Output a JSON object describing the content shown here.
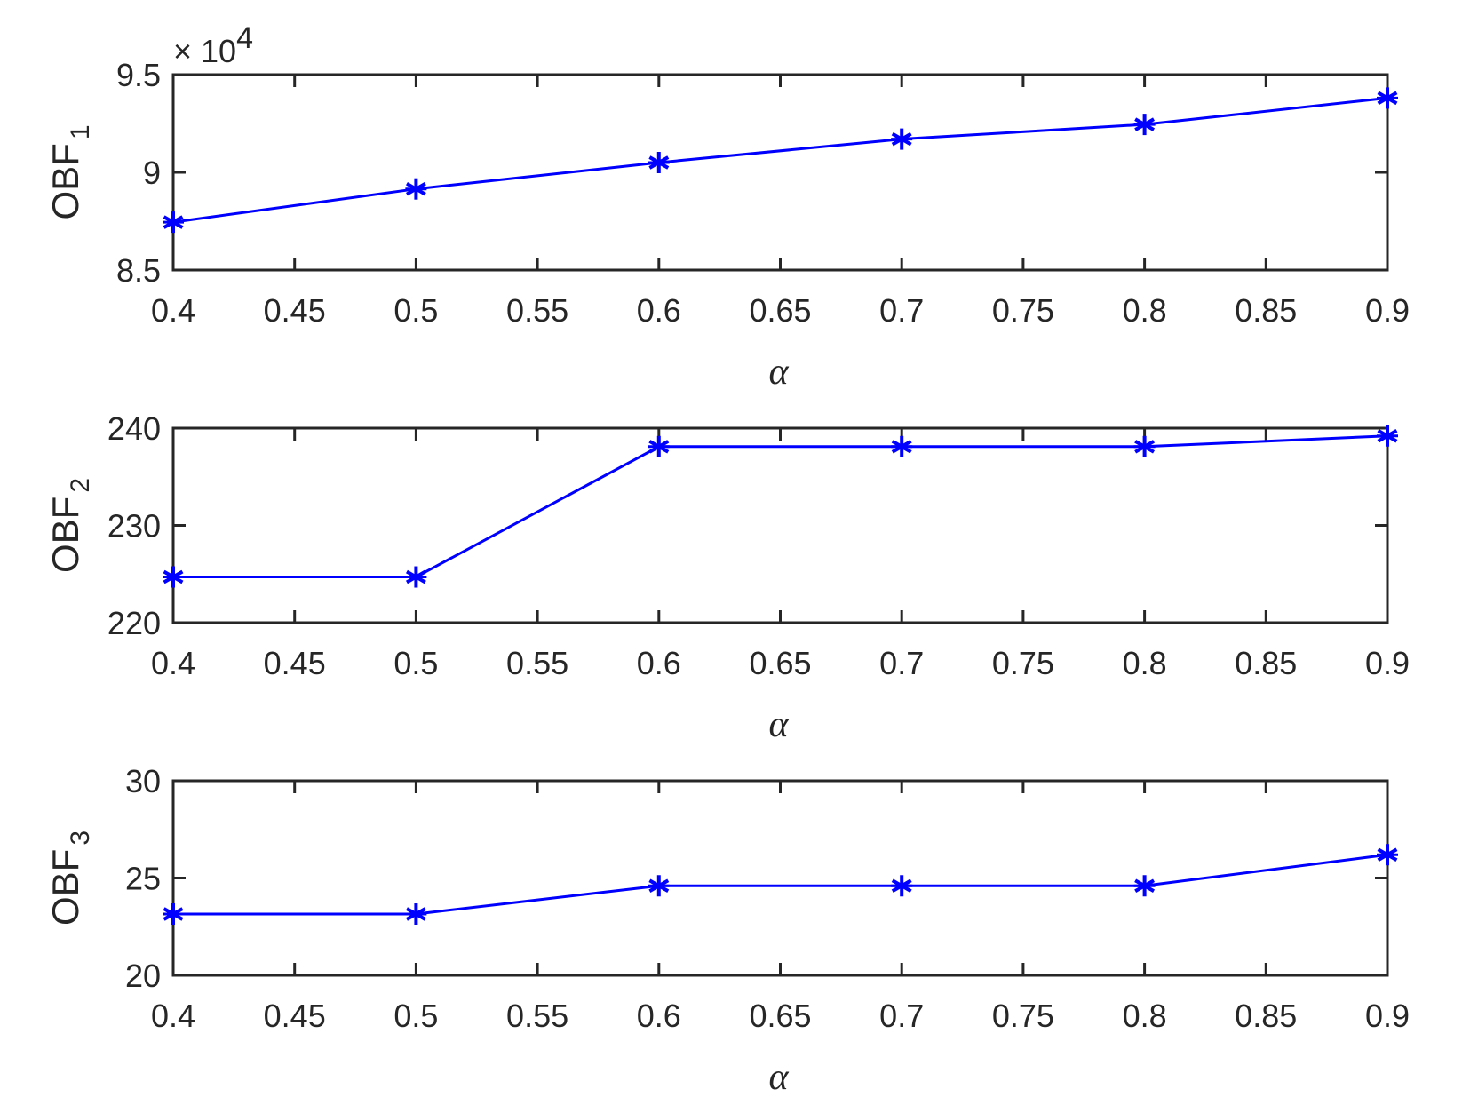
{
  "chart_data": [
    {
      "type": "line",
      "title": "",
      "xlabel": "α",
      "ylabel": "OBF_1",
      "ylabel_main": "OBF",
      "ylabel_sub": "1",
      "y_multiplier": "× 10^4",
      "x": [
        0.4,
        0.5,
        0.6,
        0.7,
        0.8,
        0.9
      ],
      "series": [
        {
          "name": "OBF_1",
          "values": [
            8.745,
            8.915,
            9.05,
            9.17,
            9.245,
            9.38
          ],
          "color": "#0000ff",
          "marker": "asterisk"
        }
      ],
      "xlim": [
        0.4,
        0.9
      ],
      "ylim": [
        8.5,
        9.5
      ],
      "xticks": [
        "0.4",
        "0.45",
        "0.5",
        "0.55",
        "0.6",
        "0.65",
        "0.7",
        "0.75",
        "0.8",
        "0.85",
        "0.9"
      ],
      "yticks": [
        "8.5",
        "9",
        "9.5"
      ],
      "grid": false,
      "legend": null
    },
    {
      "type": "line",
      "title": "",
      "xlabel": "α",
      "ylabel": "OBF_2",
      "ylabel_main": "OBF",
      "ylabel_sub": "2",
      "x": [
        0.4,
        0.5,
        0.6,
        0.7,
        0.8,
        0.9
      ],
      "series": [
        {
          "name": "OBF_2",
          "values": [
            224.7,
            224.7,
            238.1,
            238.1,
            238.1,
            239.2
          ],
          "color": "#0000ff",
          "marker": "asterisk"
        }
      ],
      "xlim": [
        0.4,
        0.9
      ],
      "ylim": [
        220,
        240
      ],
      "xticks": [
        "0.4",
        "0.45",
        "0.5",
        "0.55",
        "0.6",
        "0.65",
        "0.7",
        "0.75",
        "0.8",
        "0.85",
        "0.9"
      ],
      "yticks": [
        "220",
        "230",
        "240"
      ],
      "grid": false,
      "legend": null
    },
    {
      "type": "line",
      "title": "",
      "xlabel": "α",
      "ylabel": "OBF_3",
      "ylabel_main": "OBF",
      "ylabel_sub": "3",
      "x": [
        0.4,
        0.5,
        0.6,
        0.7,
        0.8,
        0.9
      ],
      "series": [
        {
          "name": "OBF_3",
          "values": [
            23.15,
            23.15,
            24.6,
            24.6,
            24.6,
            26.2
          ],
          "color": "#0000ff",
          "marker": "asterisk"
        }
      ],
      "xlim": [
        0.4,
        0.9
      ],
      "ylim": [
        20,
        30
      ],
      "xticks": [
        "0.4",
        "0.45",
        "0.5",
        "0.55",
        "0.6",
        "0.65",
        "0.7",
        "0.75",
        "0.8",
        "0.85",
        "0.9"
      ],
      "yticks": [
        "20",
        "25",
        "30"
      ],
      "grid": false,
      "legend": null
    }
  ],
  "colors": {
    "line": "#0000ff",
    "axis": "#262626"
  }
}
